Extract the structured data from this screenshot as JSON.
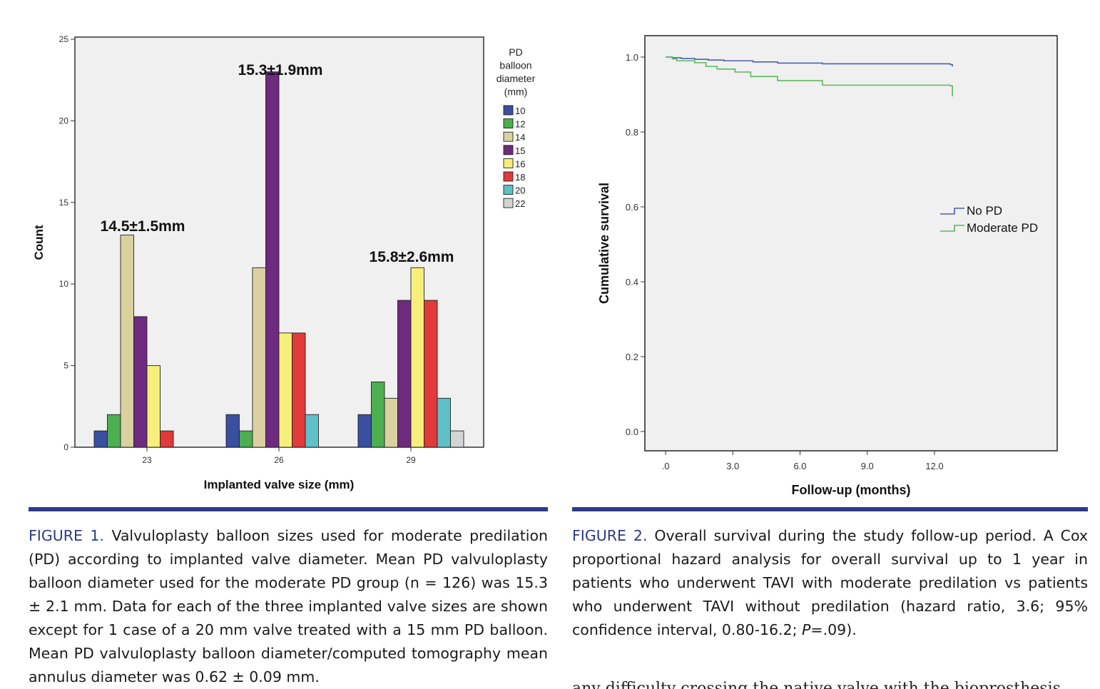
{
  "figure1": {
    "chart_data": {
      "type": "bar",
      "title": "",
      "xlabel": "Implanted valve size (mm)",
      "ylabel": "Count",
      "ylim": [
        0,
        25
      ],
      "yticks": [
        "0",
        "5",
        "10",
        "15",
        "20",
        "25"
      ],
      "categories": [
        "23",
        "26",
        "29"
      ],
      "legend_title": [
        "PD",
        "balloon",
        "diameter",
        "(mm)"
      ],
      "series": [
        {
          "name": "10",
          "color": "#3a4fa0",
          "values": [
            1,
            2,
            2
          ]
        },
        {
          "name": "12",
          "color": "#4caf50",
          "values": [
            2,
            1,
            4
          ]
        },
        {
          "name": "14",
          "color": "#d9d2a0",
          "values": [
            13,
            11,
            3
          ]
        },
        {
          "name": "15",
          "color": "#6e2a7e",
          "values": [
            8,
            23,
            9
          ]
        },
        {
          "name": "16",
          "color": "#f7ef7a",
          "values": [
            5,
            7,
            11
          ]
        },
        {
          "name": "18",
          "color": "#e03a3a",
          "values": [
            1,
            7,
            9
          ]
        },
        {
          "name": "20",
          "color": "#5fc0c8",
          "values": [
            0,
            2,
            3
          ]
        },
        {
          "name": "22",
          "color": "#d4d4d4",
          "values": [
            0,
            0,
            1
          ]
        }
      ],
      "annotations": [
        "14.5±1.5mm",
        "15.3±1.9mm",
        "15.8±2.6mm"
      ]
    }
  },
  "figure2": {
    "chart_data": {
      "type": "line",
      "title": "",
      "xlabel": "Follow-up (months)",
      "ylabel": "Cumulative survival",
      "xlim": [
        0,
        12.8
      ],
      "ylim": [
        -0.05,
        1.05
      ],
      "xticks": [
        ".0",
        "3.0",
        "6.0",
        "9.0",
        "12.0"
      ],
      "yticks": [
        "0.0",
        "0.2",
        "0.4",
        "0.6",
        "0.8",
        "1.0"
      ],
      "series": [
        {
          "name": "No PD",
          "color": "#4a5fb5",
          "x": [
            0,
            0.3,
            0.7,
            1.3,
            1.9,
            2.6,
            3.9,
            5.0,
            7.0,
            12.7,
            12.8
          ],
          "y": [
            1.0,
            0.998,
            0.996,
            0.994,
            0.992,
            0.99,
            0.987,
            0.984,
            0.982,
            0.98,
            0.975
          ]
        },
        {
          "name": "Moderate PD",
          "color": "#5cb85c",
          "x": [
            0,
            0.3,
            0.5,
            1.3,
            1.8,
            2.3,
            3.1,
            3.8,
            5.0,
            7.0,
            12.7,
            12.8
          ],
          "y": [
            1.0,
            0.995,
            0.99,
            0.985,
            0.975,
            0.968,
            0.96,
            0.948,
            0.937,
            0.925,
            0.923,
            0.895
          ]
        }
      ]
    }
  },
  "captions": {
    "fig1_label": "FIGURE 1.",
    "fig1_text": "Valvuloplasty balloon sizes used for moderate predilation (PD) according to implanted valve diameter. Mean PD valvuloplasty balloon diameter used for the moderate PD group (n = 126) was 15.3 ± 2.1 mm. Data for each of the three implanted valve sizes are shown except for 1 case of a 20 mm valve treated with a 15 mm PD balloon. Mean PD valvuloplasty balloon diameter/computed tomography mean annulus diameter was 0.62 ± 0.09 mm.",
    "fig2_label": "FIGURE 2.",
    "fig2_text_a": "Overall survival during the study follow-up period. A Cox proportional hazard analysis for overall survival up to 1 year in patients who underwent TAVI with moderate predilation vs patients who underwent TAVI without predilation (hazard ratio, 3.6; 95% confidence interval, 0.80-16.2; ",
    "fig2_text_p": "P",
    "fig2_text_b": "=.09)."
  },
  "body_text_fragment": "any difficulty crossing the native valve with the bioprosthesis"
}
